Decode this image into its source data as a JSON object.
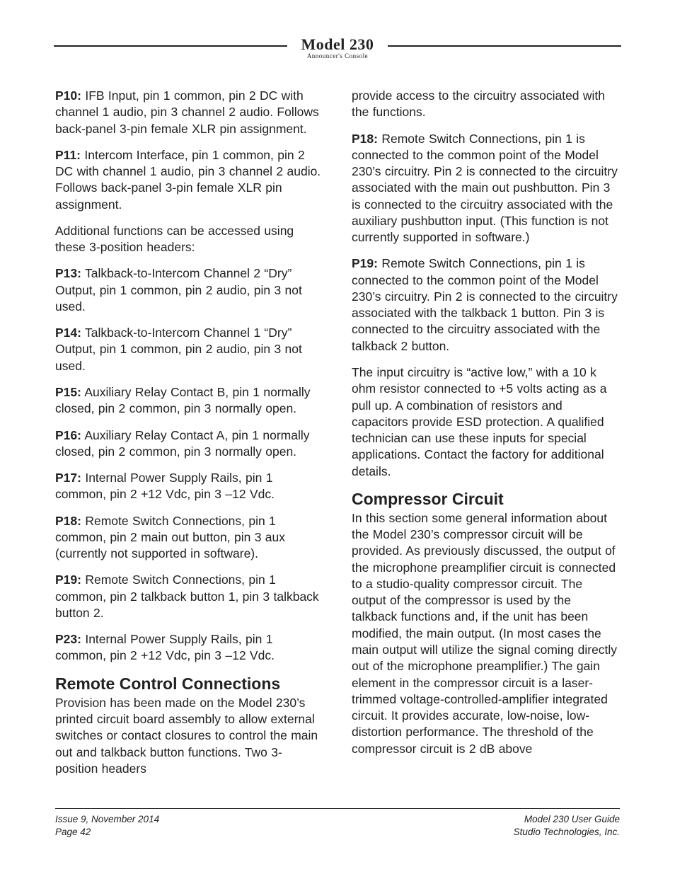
{
  "masthead": {
    "title": "Model 230",
    "subtitle": "Announcer's Console"
  },
  "left": {
    "p10_label": "P10:",
    "p10_text": " IFB Input, pin 1 common, pin 2 DC with channel 1 audio, pin 3 channel 2 audio. Follows back-panel 3-pin female XLR pin assignment.",
    "p11_label": "P11:",
    "p11_text": " Intercom Interface, pin 1 common, pin 2 DC with channel 1 audio, pin 3 channel 2 audio. Follows back-panel 3-pin female XLR pin assignment.",
    "additional": "Additional functions can be accessed using these 3-position headers:",
    "p13_label": "P13:",
    "p13_text": " Talkback-to-Intercom Channel 2 “Dry” Output, pin 1 common, pin 2 audio, pin 3 not used.",
    "p14_label": "P14:",
    "p14_text": " Talkback-to-Intercom Channel 1 “Dry” Output, pin 1 common, pin 2 audio, pin 3 not used.",
    "p15_label": "P15:",
    "p15_text": " Auxiliary Relay Contact B, pin 1 normally closed, pin 2 common, pin 3 normally open.",
    "p16_label": "P16:",
    "p16_text": " Auxiliary Relay Contact A, pin 1 normally closed, pin 2 common, pin 3 normally open.",
    "p17_label": "P17:",
    "p17_text": " Internal Power Supply Rails, pin 1 common, pin 2 +12 Vdc, pin 3 –12 Vdc.",
    "p18_label": "P18:",
    "p18_text": " Remote Switch Connections, pin 1 common, pin 2 main out button, pin 3 aux (currently not supported in software).",
    "p19_label": "P19:",
    "p19_text": " Remote Switch Connections, pin 1 common, pin 2 talkback button 1, pin 3 talkback button 2.",
    "p23_label": "P23:",
    "p23_text": " Internal Power Supply Rails, pin 1 common, pin 2 +12 Vdc, pin 3 –12 Vdc.",
    "remote_heading": "Remote Control Connections",
    "remote_body": "Provision has been made on the Model 230’s printed circuit board assembly to allow external switches or contact closures to control the main out and talkback button functions. Two 3-position headers"
  },
  "right": {
    "provide": "provide access to the circuitry associated with the functions.",
    "p18b_label": "P18:",
    "p18b_text": " Remote Switch Connections, pin 1 is connected to the common point of the Model 230’s circuitry. Pin 2 is connected to the circuitry associated with the main out pushbutton. Pin 3 is connected to the circuitry associated with the auxiliary pushbutton input. (This function is not currently supported in software.)",
    "p19b_label": "P19:",
    "p19b_text": " Remote Switch Connections, pin 1 is connected to the common point of the Model 230’s circuitry. Pin 2 is connected to the circuitry associated with the talkback 1 button. Pin 3 is connected to the circuitry associated with the talkback 2 button.",
    "active_low": "The input circuitry is “active low,” with a 10 k ohm resistor connected to +5 volts acting as a pull up. A combination of resistors and capacitors provide ESD protection. A qualified technician can use these inputs for special applications. Contact the factory for additional details.",
    "comp_heading": "Compressor Circuit",
    "comp_body": "In this section some general information about the Model 230’s compressor circuit will be provided. As previously discussed, the output of the microphone preamplifier circuit is connected to a studio-quality compressor circuit. The output of the compressor is used by the talkback functions and, if the unit has been modified, the main output. (In most cases the main output will utilize the signal coming directly out of the microphone preamplifier.) The gain element in the compressor circuit is a laser-trimmed voltage-controlled-amplifier integrated circuit. It provides accurate, low-noise, low-distortion performance. The threshold of the compressor circuit is 2 dB above"
  },
  "footer": {
    "issue": "Issue 9, November 2014",
    "page": "Page 42",
    "guide": "Model 230 User Guide",
    "company": "Studio Technologies, Inc."
  }
}
